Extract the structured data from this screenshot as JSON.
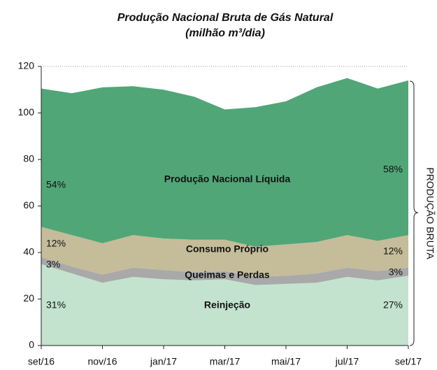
{
  "chart_data": {
    "type": "stacked_area",
    "title": "Produção Nacional Bruta de Gás Natural",
    "subtitle": "(milhão m³/dia)",
    "side_label": "PRODUÇÃO BRUTA",
    "categories": [
      "set/16",
      null,
      "nov/16",
      null,
      "jan/17",
      null,
      "mar/17",
      null,
      "mai/17",
      null,
      "jul/17",
      null,
      "set/17"
    ],
    "ylim": [
      0,
      120
    ],
    "yticks": [
      0,
      20,
      40,
      60,
      80,
      100,
      120
    ],
    "series": [
      {
        "name": "Reinjeção",
        "color": "#c3e3cf",
        "start_label": "31%",
        "end_label": "27%",
        "values": [
          35,
          31,
          27,
          29.5,
          28.5,
          28,
          28.5,
          26,
          26.5,
          27,
          29.5,
          28,
          30
        ]
      },
      {
        "name": "Queimas e Perdas",
        "color": "#a9a9a9",
        "start_label": "3%",
        "end_label": "3%",
        "values": [
          3,
          3,
          3.5,
          4,
          4,
          3.5,
          3.5,
          3.5,
          3.5,
          4,
          4,
          4,
          3.5
        ]
      },
      {
        "name": "Consumo Próprio",
        "color": "#c5bc99",
        "start_label": "12%",
        "end_label": "12%",
        "values": [
          13,
          13.5,
          13.5,
          14,
          13.5,
          14,
          13.5,
          13,
          13.5,
          13.5,
          14,
          13,
          14
        ]
      },
      {
        "name": "Produção Nacional Líquida",
        "color": "#50a677",
        "start_label": "54%",
        "end_label": "58%",
        "values": [
          59.5,
          61,
          67,
          64,
          64,
          61.5,
          56,
          60,
          61.5,
          66.5,
          67.5,
          65.5,
          66.5
        ]
      }
    ]
  }
}
